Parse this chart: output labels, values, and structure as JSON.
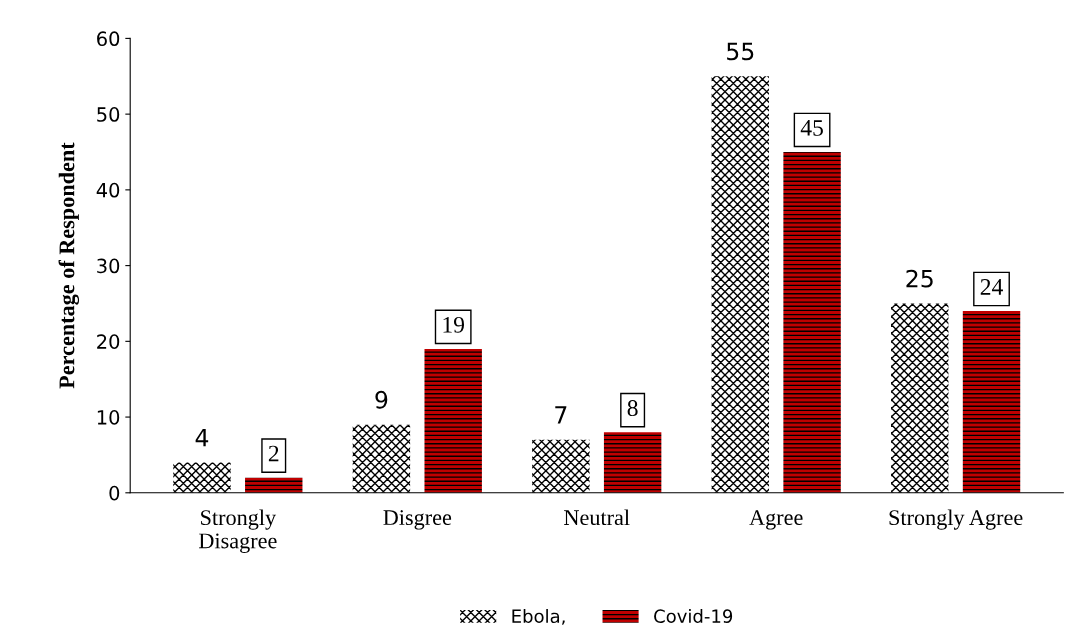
{
  "chart_data": {
    "type": "bar",
    "ylabel": "Percentage of Respondent",
    "categories": [
      "Strongly\nDisagree",
      "Disgree",
      "Neutral",
      "Agree",
      "Strongly Agree"
    ],
    "series": [
      {
        "name": "Ebola,",
        "color": "#ffffff",
        "values": [
          4,
          9,
          7,
          55,
          25
        ]
      },
      {
        "name": "Covid-19",
        "color": "#c00000",
        "values": [
          2,
          19,
          8,
          45,
          24
        ]
      }
    ],
    "ylim": [
      0,
      60
    ],
    "yticks": [
      0,
      10,
      20,
      30,
      40,
      50,
      60
    ],
    "grid": false,
    "legend": "bottom",
    "data_labels": true
  }
}
